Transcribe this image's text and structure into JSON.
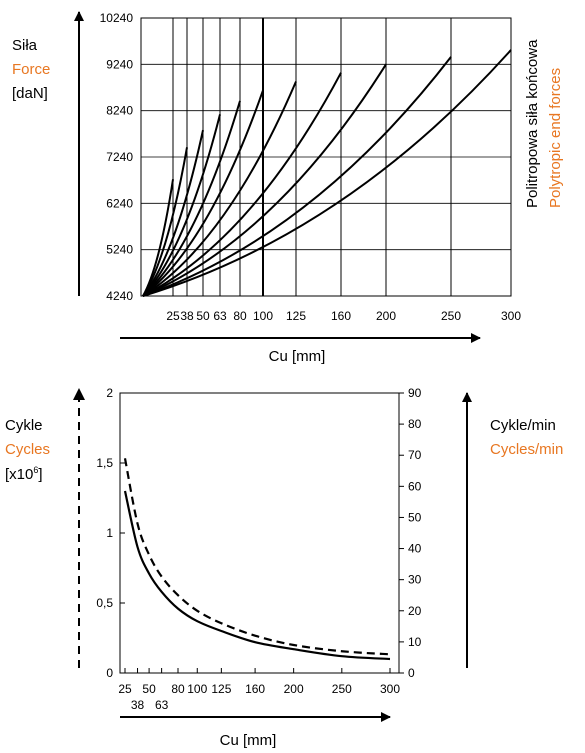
{
  "colors": {
    "ink": "#000000",
    "accent": "#e87722"
  },
  "chart1": {
    "ylabel": {
      "pl": "Siła",
      "en": "Force",
      "unit": "[daN]"
    },
    "right_label": {
      "pl": "Politropowa siła końcowa",
      "en": "Polytropic end forces"
    },
    "xlabel": "Cu [mm]",
    "y_ticks": [
      "4240",
      "5240",
      "6240",
      "7240",
      "8240",
      "9240",
      "10240"
    ],
    "x_tick_labels": [
      "25",
      "38",
      "50",
      "63",
      "80",
      "100",
      "125",
      "160",
      "200",
      "250",
      "300"
    ]
  },
  "chart2": {
    "ylabel_left": {
      "pl": "Cykle",
      "en": "Cycles",
      "unit": "[x10",
      "sup": "6",
      "unit_end": "]"
    },
    "ylabel_right": {
      "pl": "Cykle/min",
      "en": "Cycles/min"
    },
    "xlabel": "Cu [mm]",
    "y_ticks_left": [
      "0",
      "0,5",
      "1",
      "1,5",
      "2"
    ],
    "y_ticks_right": [
      "0",
      "10",
      "20",
      "30",
      "40",
      "50",
      "60",
      "70",
      "80",
      "90"
    ],
    "x_ticks_top_row": [
      "25",
      "50",
      "80",
      "100",
      "125",
      "160",
      "200",
      "250",
      "300"
    ],
    "x_ticks_bottom_row": [
      "38",
      "63"
    ]
  },
  "chart_data": [
    {
      "type": "line",
      "title": "",
      "xlabel": "Cu [mm]",
      "ylabel": "Siła Force [daN]",
      "ylim": [
        4240,
        10240
      ],
      "y_ticks": [
        4240,
        5240,
        6240,
        7240,
        8240,
        9240,
        10240
      ],
      "grid": true,
      "series": [
        {
          "name": "25",
          "x": [
            0,
            25
          ],
          "y": [
            4240,
            6760
          ]
        },
        {
          "name": "38",
          "x": [
            0,
            38
          ],
          "y": [
            4240,
            7450
          ]
        },
        {
          "name": "50",
          "x": [
            0,
            50
          ],
          "y": [
            4240,
            7820
          ]
        },
        {
          "name": "63",
          "x": [
            0,
            63
          ],
          "y": [
            4240,
            8160
          ]
        },
        {
          "name": "80",
          "x": [
            0,
            80
          ],
          "y": [
            4240,
            8450
          ]
        },
        {
          "name": "100",
          "x": [
            0,
            100
          ],
          "y": [
            4240,
            8680
          ]
        },
        {
          "name": "125",
          "x": [
            0,
            125
          ],
          "y": [
            4240,
            8870
          ]
        },
        {
          "name": "160",
          "x": [
            0,
            160
          ],
          "y": [
            4240,
            9060
          ]
        },
        {
          "name": "200",
          "x": [
            0,
            200
          ],
          "y": [
            4240,
            9240
          ]
        },
        {
          "name": "250",
          "x": [
            0,
            250
          ],
          "y": [
            4240,
            9400
          ]
        },
        {
          "name": "300",
          "x": [
            0,
            300
          ],
          "y": [
            4240,
            9550
          ]
        }
      ]
    },
    {
      "type": "line",
      "title": "",
      "xlabel": "Cu [mm]",
      "ylabel_left": "Cykle Cycles [x10^6]",
      "ylabel_right": "Cykle/min Cycles/min",
      "x": [
        25,
        38,
        50,
        63,
        80,
        100,
        125,
        160,
        200,
        250,
        300
      ],
      "xlim": [
        25,
        300
      ],
      "ylim_left": [
        0,
        2
      ],
      "ylim_right": [
        0,
        90
      ],
      "series": [
        {
          "name": "Cykle (solid)",
          "axis": "left",
          "y": [
            1.3,
            0.9,
            0.71,
            0.58,
            0.46,
            0.37,
            0.3,
            0.22,
            0.17,
            0.12,
            0.1
          ]
        },
        {
          "name": "Cykle/min (dashed)",
          "axis": "right",
          "y": [
            69,
            48,
            38,
            31,
            25,
            20,
            16,
            12,
            9,
            7,
            6
          ]
        }
      ]
    }
  ]
}
